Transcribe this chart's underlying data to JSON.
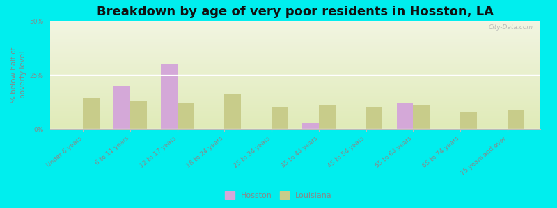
{
  "title": "Breakdown by age of very poor residents in Hosston, LA",
  "ylabel": "% below half of\npoverty level",
  "categories": [
    "Under 6 years",
    "6 to 11 years",
    "12 to 17 years",
    "18 to 24 years",
    "25 to 34 years",
    "35 to 44 years",
    "45 to 54 years",
    "55 to 64 years",
    "65 to 74 years",
    "75 years and over"
  ],
  "hosston": [
    0,
    20,
    30,
    0,
    0,
    3,
    0,
    12,
    0,
    0
  ],
  "louisiana": [
    14,
    13,
    12,
    16,
    10,
    11,
    10,
    11,
    8,
    9
  ],
  "hosston_color": "#d4a8d8",
  "louisiana_color": "#c8cc8a",
  "bg_color_top": "#f2f5e2",
  "bg_color_bottom": "#e0ebb8",
  "outer_bg": "#00eeee",
  "ylim": [
    0,
    50
  ],
  "yticks": [
    0,
    25,
    50
  ],
  "ytick_labels": [
    "0%",
    "25%",
    "50%"
  ],
  "bar_width": 0.35,
  "title_fontsize": 13,
  "axis_label_fontsize": 7.5,
  "tick_fontsize": 6.5,
  "legend_hosston": "Hosston",
  "legend_louisiana": "Louisiana",
  "watermark": "City-Data.com"
}
